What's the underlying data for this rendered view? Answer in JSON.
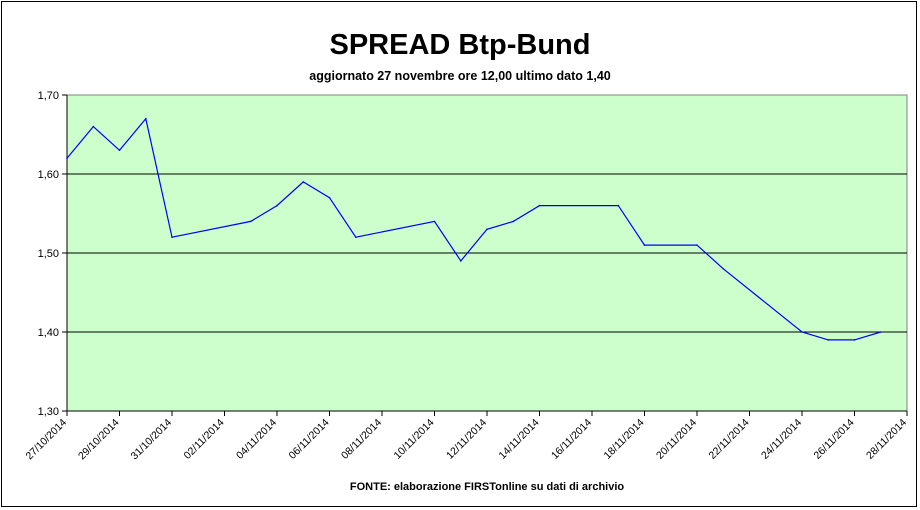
{
  "chart_data": {
    "type": "line",
    "title": "SPREAD Btp-Bund",
    "subtitle": "aggiornato 27 novembre ore 12,00  ultimo dato  1,40",
    "source": "FONTE: elaborazione FIRSTonline su dati di archivio",
    "xlabel": "",
    "ylabel": "",
    "ylim": [
      1.3,
      1.7
    ],
    "yticks": [
      "1,30",
      "1,40",
      "1,50",
      "1,60",
      "1,70"
    ],
    "xlim": [
      "2014-10-27",
      "2014-11-28"
    ],
    "xticks": [
      "27/10/2014",
      "29/10/2014",
      "31/10/2014",
      "02/11/2014",
      "04/11/2014",
      "06/11/2014",
      "08/11/2014",
      "10/11/2014",
      "12/11/2014",
      "14/11/2014",
      "16/11/2014",
      "18/11/2014",
      "20/11/2014",
      "22/11/2014",
      "24/11/2014",
      "26/11/2014",
      "28/11/2014"
    ],
    "grid": true,
    "legend": "none",
    "colors": {
      "plot_bg": "#CCFFCC",
      "line": "#0000FF",
      "grid": "#000000"
    },
    "series": [
      {
        "points": [
          [
            "2014-10-27",
            1.62
          ],
          [
            "2014-10-28",
            1.66
          ],
          [
            "2014-10-29",
            1.63
          ],
          [
            "2014-10-30",
            1.67
          ],
          [
            "2014-10-31",
            1.52
          ],
          [
            "2014-11-03",
            1.54
          ],
          [
            "2014-11-04",
            1.56
          ],
          [
            "2014-11-05",
            1.59
          ],
          [
            "2014-11-06",
            1.57
          ],
          [
            "2014-11-07",
            1.52
          ],
          [
            "2014-11-10",
            1.54
          ],
          [
            "2014-11-11",
            1.49
          ],
          [
            "2014-11-12",
            1.53
          ],
          [
            "2014-11-13",
            1.54
          ],
          [
            "2014-11-14",
            1.56
          ],
          [
            "2014-11-17",
            1.56
          ],
          [
            "2014-11-18",
            1.51
          ],
          [
            "2014-11-20",
            1.51
          ],
          [
            "2014-11-21",
            1.48
          ],
          [
            "2014-11-24",
            1.4
          ],
          [
            "2014-11-25",
            1.39
          ],
          [
            "2014-11-26",
            1.39
          ],
          [
            "2014-11-27",
            1.4
          ]
        ]
      }
    ]
  }
}
